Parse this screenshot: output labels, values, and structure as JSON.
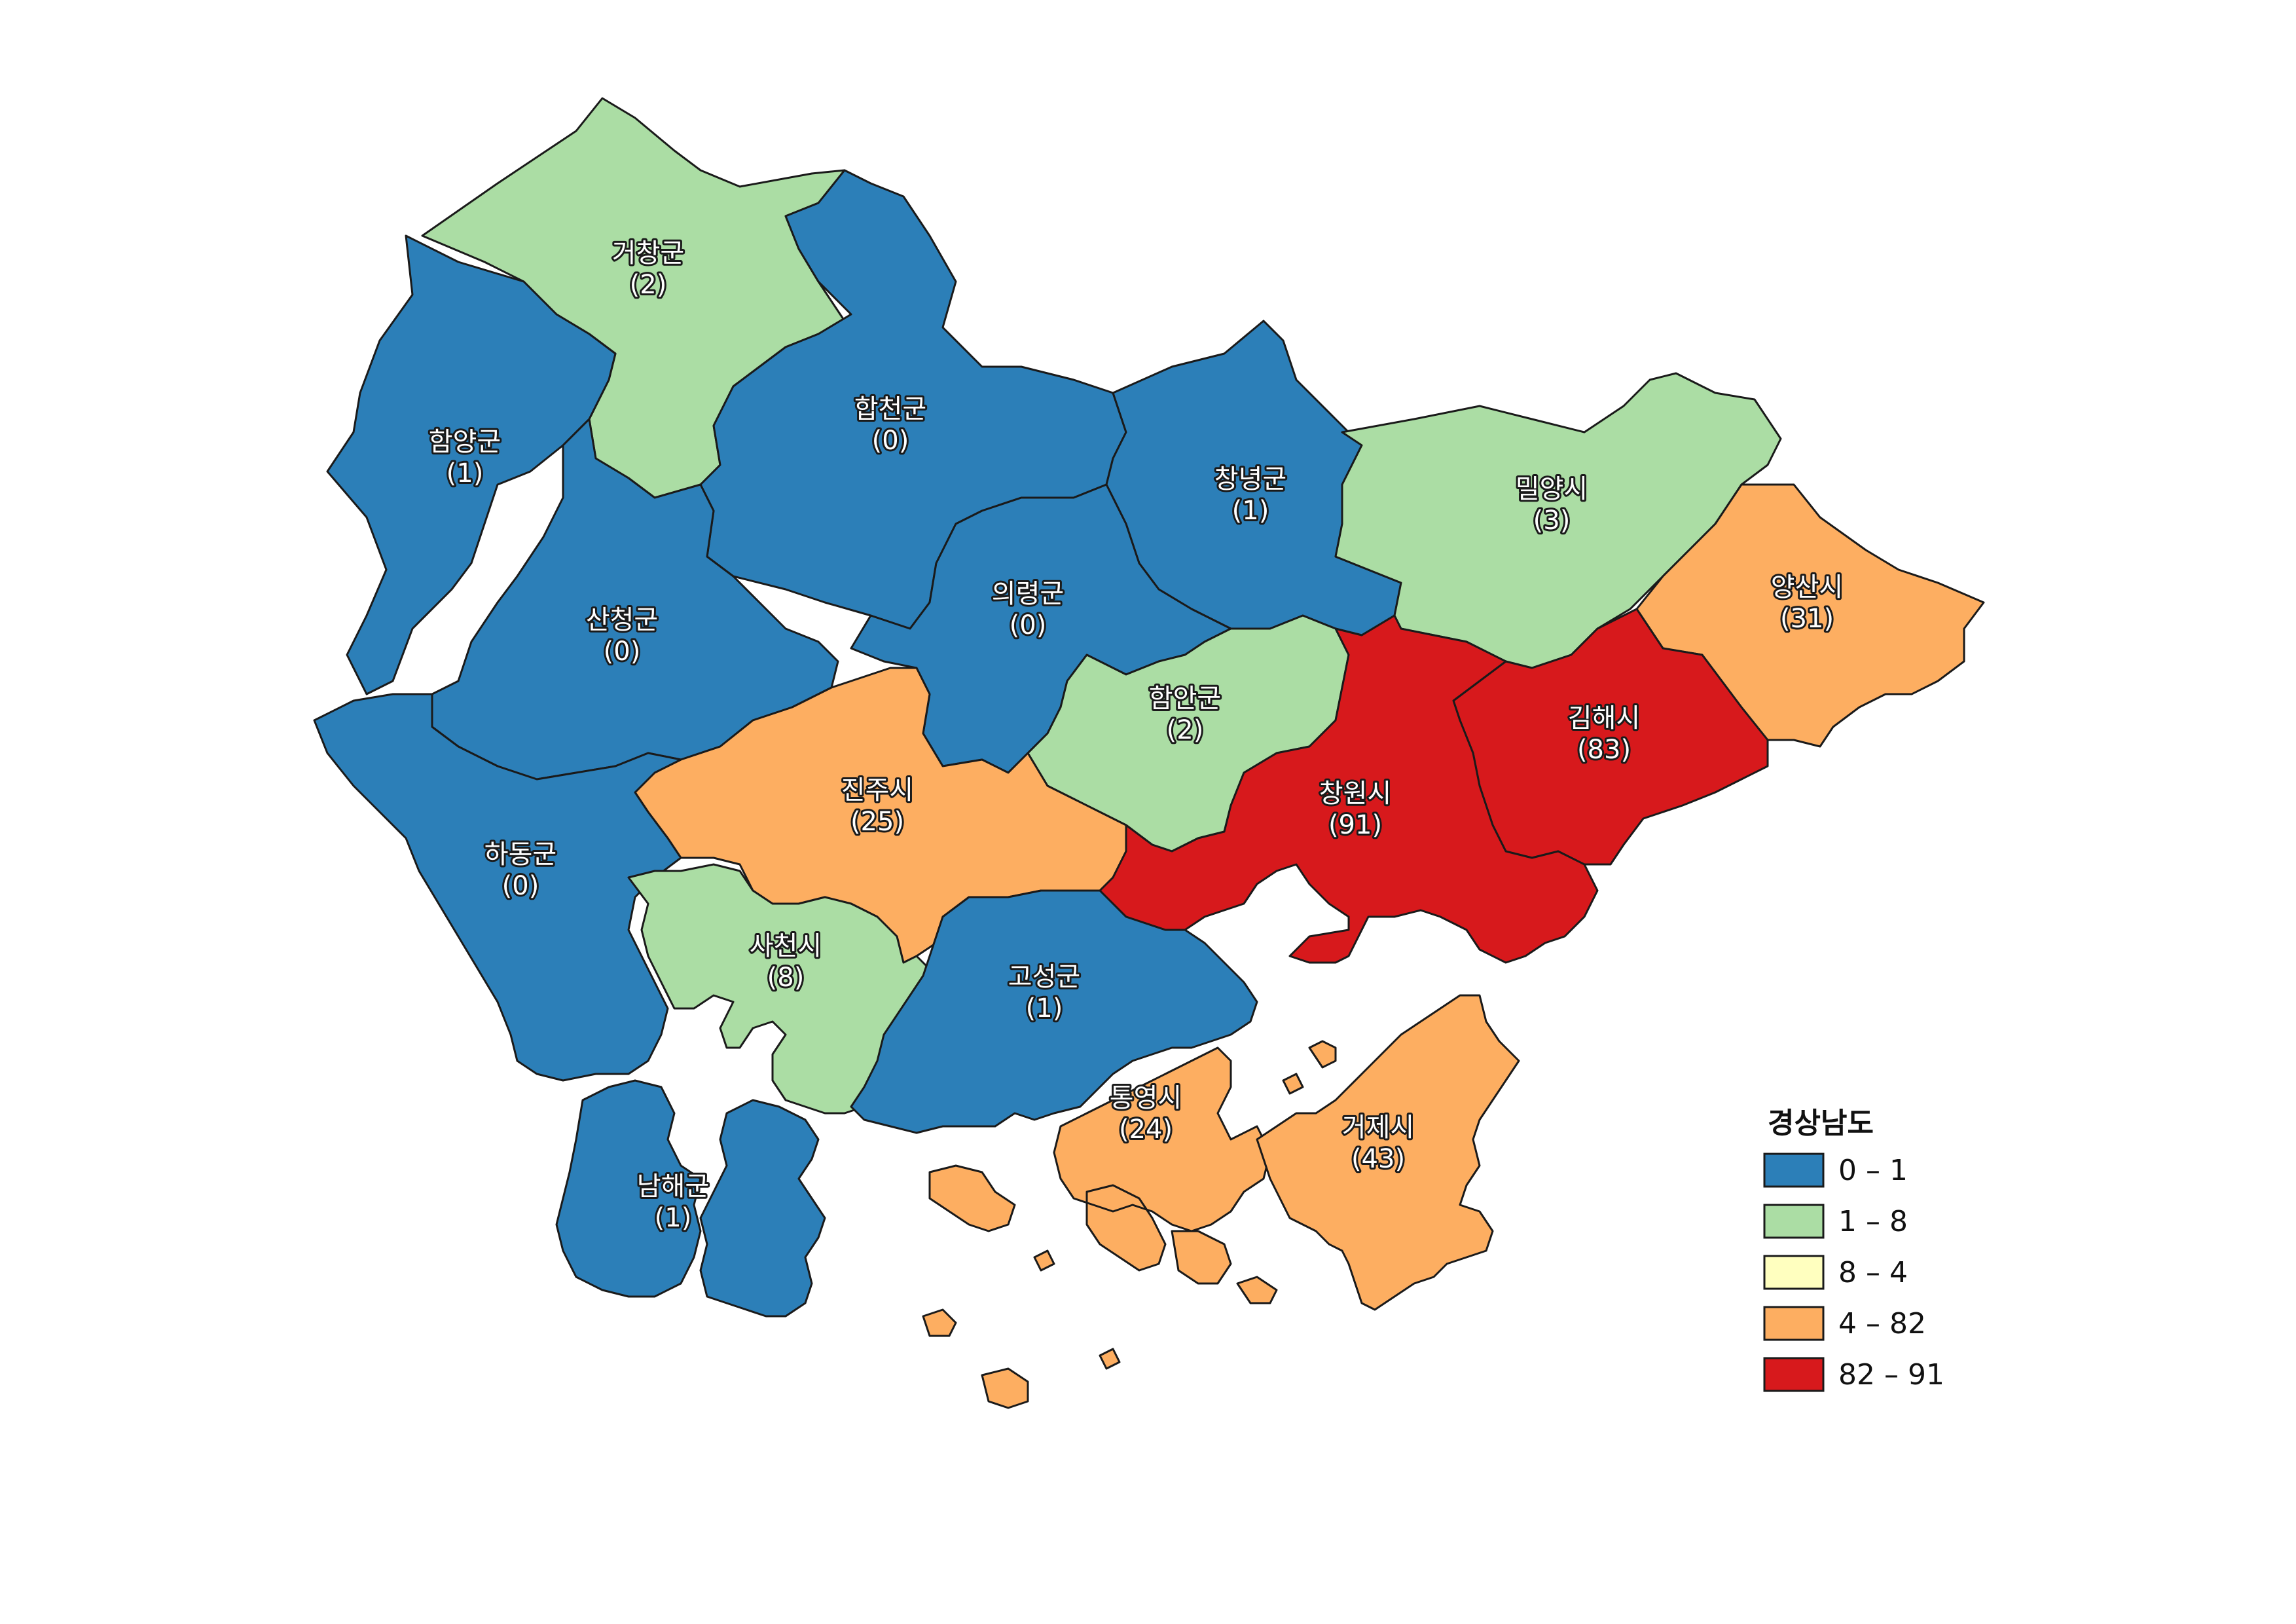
{
  "colors": {
    "class_0": "#2c7fb8",
    "class_1": "#abdda4",
    "class_2": "#ffffbf",
    "class_3": "#fdae61",
    "class_4": "#d7191c",
    "border": "#1a1a1a"
  },
  "legend": {
    "title": "경상남도",
    "items": [
      {
        "label": "0 – 1"
      },
      {
        "label": "1 – 8"
      },
      {
        "label": "8 – 4"
      },
      {
        "label": "4 – 82"
      },
      {
        "label": "82 – 91"
      }
    ]
  },
  "regions": [
    {
      "id": "geochang",
      "name": "거창군",
      "value_text": "(2)",
      "value": 2,
      "class": 1
    },
    {
      "id": "hamyang",
      "name": "함양군",
      "value_text": "(1)",
      "value": 1,
      "class": 0
    },
    {
      "id": "hapcheon",
      "name": "합천군",
      "value_text": "(0)",
      "value": 0,
      "class": 0
    },
    {
      "id": "changnyeong",
      "name": "창녕군",
      "value_text": "(1)",
      "value": 1,
      "class": 0
    },
    {
      "id": "miryang",
      "name": "밀양시",
      "value_text": "(3)",
      "value": 3,
      "class": 1
    },
    {
      "id": "yangsan",
      "name": "양산시",
      "value_text": "(31)",
      "value": 31,
      "class": 3
    },
    {
      "id": "sancheong",
      "name": "산청군",
      "value_text": "(0)",
      "value": 0,
      "class": 0
    },
    {
      "id": "uiryeong",
      "name": "의령군",
      "value_text": "(0)",
      "value": 0,
      "class": 0
    },
    {
      "id": "haman",
      "name": "함안군",
      "value_text": "(2)",
      "value": 2,
      "class": 1
    },
    {
      "id": "gimhae",
      "name": "김해시",
      "value_text": "(83)",
      "value": 83,
      "class": 4
    },
    {
      "id": "jinju",
      "name": "진주시",
      "value_text": "(25)",
      "value": 25,
      "class": 3
    },
    {
      "id": "changwon",
      "name": "창원시",
      "value_text": "(91)",
      "value": 91,
      "class": 4
    },
    {
      "id": "hadong",
      "name": "하동군",
      "value_text": "(0)",
      "value": 0,
      "class": 0
    },
    {
      "id": "sacheon",
      "name": "사천시",
      "value_text": "(8)",
      "value": 8,
      "class": 1
    },
    {
      "id": "goseong",
      "name": "고성군",
      "value_text": "(1)",
      "value": 1,
      "class": 0
    },
    {
      "id": "tongyeong",
      "name": "통영시",
      "value_text": "(24)",
      "value": 24,
      "class": 3
    },
    {
      "id": "geoje",
      "name": "거제시",
      "value_text": "(43)",
      "value": 43,
      "class": 3
    },
    {
      "id": "namhae",
      "name": "남해군",
      "value_text": "(1)",
      "value": 1,
      "class": 0
    }
  ]
}
